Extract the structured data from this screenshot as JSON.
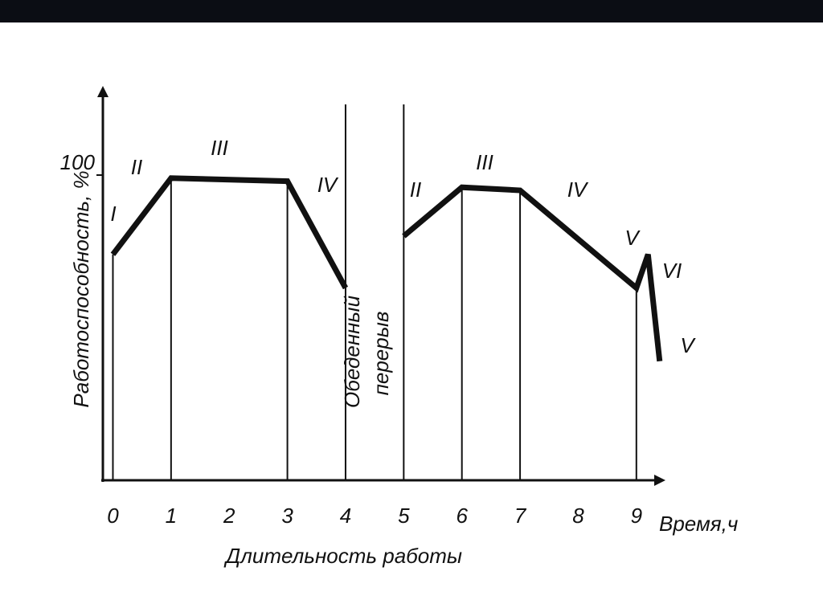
{
  "chart_data": {
    "type": "line",
    "y_label": "Работоспособность, %",
    "x_unit_label": "Время,ч",
    "x_label": "Длительность работы",
    "break_label": [
      "Обеденный",
      "перерыв"
    ],
    "xlim": [
      -0.2,
      9.5
    ],
    "xticks": [
      0,
      1,
      2,
      3,
      4,
      5,
      6,
      7,
      8,
      9
    ],
    "ylim": [
      0,
      125
    ],
    "yticks": [
      100
    ],
    "color": "#111111",
    "series": [
      {
        "x": [
          0,
          1,
          3,
          4
        ],
        "values": [
          74,
          99,
          98,
          63
        ]
      },
      {
        "x": [
          5,
          6,
          7,
          9,
          9.2,
          9.4
        ],
        "values": [
          80,
          96,
          95,
          63,
          74,
          39
        ]
      }
    ],
    "phase_lines": [
      0,
      1,
      3,
      6,
      7,
      9
    ],
    "break_lines": [
      4,
      5
    ],
    "annotations": [
      "I",
      "II",
      "III",
      "IV",
      "II",
      "III",
      "IV",
      "V",
      "VI",
      "V"
    ]
  }
}
